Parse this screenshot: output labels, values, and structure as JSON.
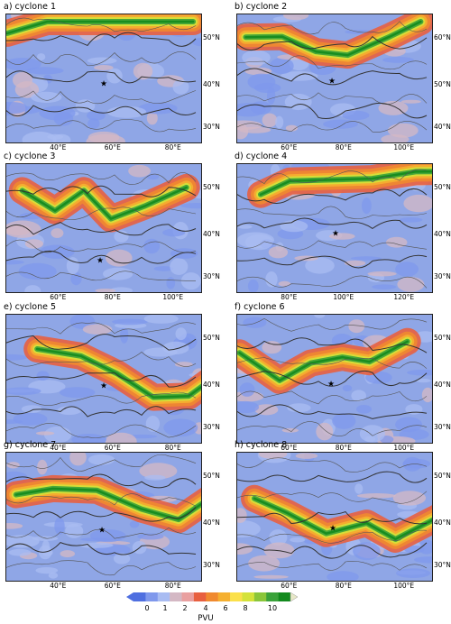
{
  "figure": {
    "panels": [
      {
        "title": "a) cyclone 1",
        "lon_labels": [
          "40°E",
          "60°E",
          "80°E"
        ],
        "lat_labels": [
          "50°N",
          "40°N",
          "30°N"
        ],
        "cyclone_marker": "★",
        "seed": 1
      },
      {
        "title": "b) cyclone 2",
        "lon_labels": [
          "60°E",
          "80°E",
          "100°E"
        ],
        "lat_labels": [
          "60°N",
          "50°N",
          "40°N"
        ],
        "cyclone_marker": "★",
        "seed": 2
      },
      {
        "title": "c) cyclone 3",
        "lon_labels": [
          "60°E",
          "80°E",
          "100°E"
        ],
        "lat_labels": [
          "50°N",
          "40°N",
          "30°N"
        ],
        "cyclone_marker": "★",
        "seed": 3
      },
      {
        "title": "d) cyclone 4",
        "lon_labels": [
          "80°E",
          "100°E",
          "120°E"
        ],
        "lat_labels": [
          "50°N",
          "40°N",
          "30°N"
        ],
        "cyclone_marker": "★",
        "seed": 4
      },
      {
        "title": "e) cyclone 5",
        "lon_labels": [
          "40°E",
          "60°E",
          "80°E"
        ],
        "lat_labels": [
          "50°N",
          "40°N",
          "30°N"
        ],
        "cyclone_marker": "★",
        "seed": 5
      },
      {
        "title": "f) cyclone 6",
        "lon_labels": [
          "60°E",
          "80°E",
          "100°E"
        ],
        "lat_labels": [
          "50°N",
          "40°N",
          "30°N"
        ],
        "cyclone_marker": "★",
        "seed": 6
      },
      {
        "title": "g) cyclone 7",
        "lon_labels": [
          "40°E",
          "60°E",
          "80°E"
        ],
        "lat_labels": [
          "50°N",
          "40°N",
          "30°N"
        ],
        "cyclone_marker": "★",
        "seed": 7
      },
      {
        "title": "h) cyclone 8",
        "lon_labels": [
          "60°E",
          "80°E",
          "100°E"
        ],
        "lat_labels": [
          "50°N",
          "40°N",
          "30°N"
        ],
        "cyclone_marker": "★",
        "seed": 8
      }
    ]
  },
  "colorbar": {
    "unit": "PVU",
    "tick_labels": [
      "0",
      "1",
      "2",
      "4",
      "6",
      "8",
      "10"
    ],
    "colors": [
      "#4f6fe0",
      "#7f98ec",
      "#a9bcf2",
      "#d4b8c4",
      "#e9a0a0",
      "#e86040",
      "#f08a30",
      "#f5b030",
      "#fbe04a",
      "#d4e23a",
      "#8ac63a",
      "#3aa23a",
      "#138a1e"
    ],
    "extend": "both"
  }
}
